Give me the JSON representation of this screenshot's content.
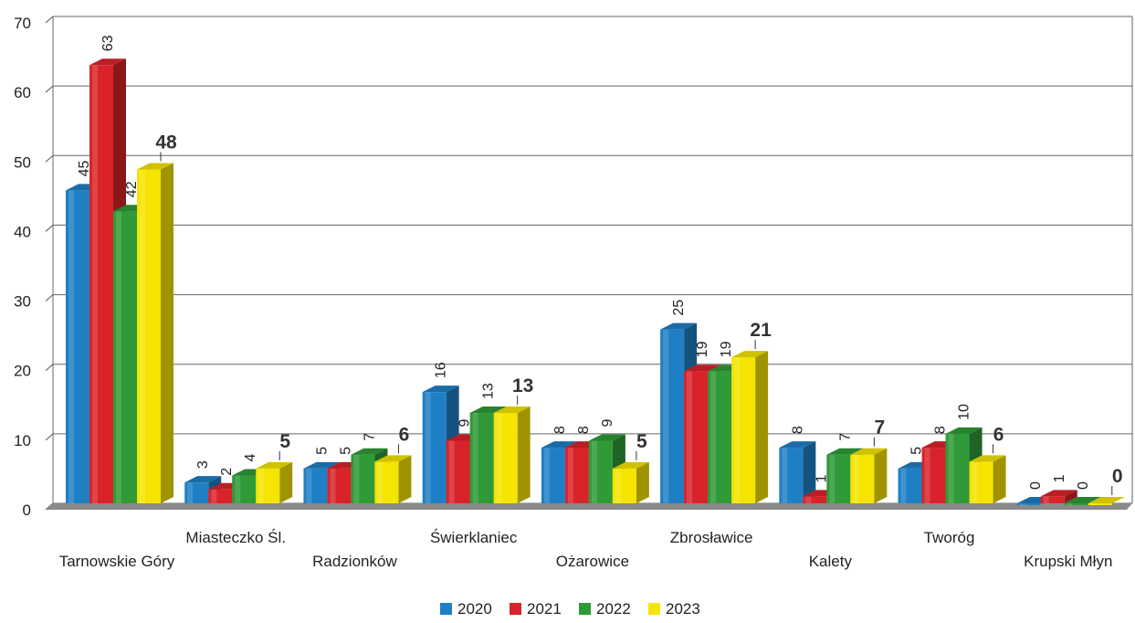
{
  "chart_data": {
    "type": "bar",
    "title": "",
    "xlabel": "",
    "ylabel": "",
    "ylim": [
      0,
      70
    ],
    "yticks": [
      0,
      10,
      20,
      30,
      40,
      50,
      60,
      70
    ],
    "grid": true,
    "legend_position": "bottom",
    "categories": [
      "Tarnowskie Góry",
      "Miasteczko Śl.",
      "Radzionków",
      "Świerklaniec",
      "Ożarowice",
      "Zbrosławice",
      "Kalety",
      "Tworóg",
      "Krupski Młyn"
    ],
    "series": [
      {
        "name": "2020",
        "color": "#1f7fc4",
        "values": [
          45,
          3,
          5,
          16,
          8,
          25,
          8,
          5,
          0
        ]
      },
      {
        "name": "2021",
        "color": "#d8232a",
        "values": [
          63,
          2,
          5,
          9,
          8,
          19,
          1,
          8,
          1
        ]
      },
      {
        "name": "2022",
        "color": "#2f9a37",
        "values": [
          42,
          4,
          7,
          13,
          9,
          19,
          7,
          10,
          0
        ]
      },
      {
        "name": "2023",
        "color": "#f5e400",
        "values": [
          48,
          5,
          6,
          13,
          5,
          21,
          7,
          6,
          0
        ]
      }
    ]
  }
}
